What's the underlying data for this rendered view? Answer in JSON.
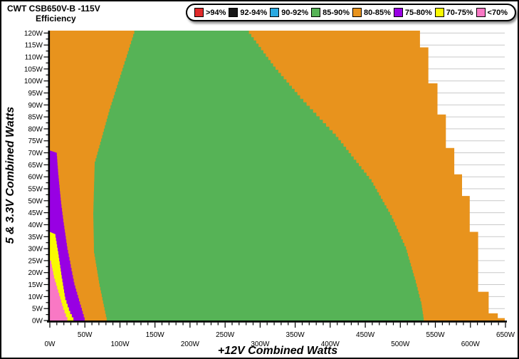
{
  "header": {
    "title": "CWT CSB650V-B -115V",
    "subtitle": "Efficiency"
  },
  "legend": {
    "position": "top",
    "items": [
      {
        "label": ">94%",
        "color": "#e02a2a"
      },
      {
        "label": "92-94%",
        "color": "#161616"
      },
      {
        "label": "90-92%",
        "color": "#29a9e1"
      },
      {
        "label": "85-90%",
        "color": "#56b356"
      },
      {
        "label": "80-85%",
        "color": "#e8931d"
      },
      {
        "label": "75-80%",
        "color": "#9800e3"
      },
      {
        "label": "70-75%",
        "color": "#fafa00"
      },
      {
        "label": "<70%",
        "color": "#f978c4"
      }
    ]
  },
  "chart_data": {
    "type": "heatmap",
    "title": "CWT CSB650V-B -115V Efficiency map",
    "xlabel": "+12V Combined Watts",
    "ylabel": "5 & 3.3V Combined Watts",
    "xlim": [
      0,
      650
    ],
    "ylim": [
      0,
      121
    ],
    "x_major_tick_step": 50,
    "x_minor_tick_step": 10,
    "y_major_tick_step": 5,
    "y_minor_tick_step": 2.5,
    "x_tick_labels": [
      "0W",
      "50W",
      "100W",
      "150W",
      "200W",
      "250W",
      "300W",
      "350W",
      "400W",
      "450W",
      "500W",
      "550W",
      "600W",
      "650W"
    ],
    "x_tick_label_rows": "staggered",
    "y_tick_labels": [
      "0W",
      "5W",
      "10W",
      "15W",
      "20W",
      "25W",
      "30W",
      "35W",
      "40W",
      "45W",
      "50W",
      "55W",
      "60W",
      "65W",
      "70W",
      "75W",
      "80W",
      "85W",
      "90W",
      "95W",
      "100W",
      "105W",
      "110W",
      "115W",
      "120W"
    ],
    "grid": {
      "horizontal_every": 5,
      "vertical": false,
      "color": "#c9c9c9"
    },
    "legend_position": "top",
    "units": "watts",
    "regions": [
      {
        "label": "80-85%",
        "color": "#e8931d",
        "polygon": [
          [
            0,
            121
          ],
          [
            528,
            121
          ],
          [
            528,
            114
          ],
          [
            540,
            114
          ],
          [
            540,
            99
          ],
          [
            553,
            99
          ],
          [
            553,
            86
          ],
          [
            565,
            86
          ],
          [
            565,
            72
          ],
          [
            577,
            72
          ],
          [
            577,
            61
          ],
          [
            588,
            61
          ],
          [
            588,
            52
          ],
          [
            599,
            52
          ],
          [
            599,
            37
          ],
          [
            611,
            37
          ],
          [
            611,
            12
          ],
          [
            626,
            12
          ],
          [
            626,
            3
          ],
          [
            639,
            3
          ],
          [
            639,
            1
          ],
          [
            649,
            1
          ],
          [
            649,
            0
          ],
          [
            0,
            0
          ]
        ]
      },
      {
        "label": "85-90%",
        "color": "#56b356",
        "polygon": [
          [
            122,
            121
          ],
          [
            284,
            121
          ],
          [
            322,
            106
          ],
          [
            357,
            94
          ],
          [
            408,
            78
          ],
          [
            459,
            59
          ],
          [
            488,
            44
          ],
          [
            508,
            31
          ],
          [
            522,
            17
          ],
          [
            530,
            8
          ],
          [
            534,
            0
          ],
          [
            81,
            0
          ],
          [
            71,
            14
          ],
          [
            63,
            28
          ],
          [
            62,
            44
          ],
          [
            64,
            65
          ],
          [
            85,
            87
          ]
        ]
      },
      {
        "label": "75-80%",
        "color": "#9800e3",
        "polygon": [
          [
            0,
            71
          ],
          [
            10,
            70
          ],
          [
            12,
            62
          ],
          [
            16,
            50
          ],
          [
            20,
            41
          ],
          [
            25,
            31
          ],
          [
            29,
            25
          ],
          [
            35,
            16
          ],
          [
            43,
            8
          ],
          [
            51,
            0
          ],
          [
            0,
            0
          ]
        ]
      },
      {
        "label": "70-75%",
        "color": "#fafa00",
        "polygon": [
          [
            0,
            37
          ],
          [
            8,
            36
          ],
          [
            12,
            29
          ],
          [
            17,
            19
          ],
          [
            22,
            10
          ],
          [
            29,
            4
          ],
          [
            36,
            0
          ],
          [
            0,
            0
          ]
        ]
      },
      {
        "label": "<70%",
        "color": "#f978c4",
        "polygon": [
          [
            0,
            25
          ],
          [
            2,
            25
          ],
          [
            6,
            19
          ],
          [
            12,
            13
          ],
          [
            19,
            6
          ],
          [
            27,
            0
          ],
          [
            0,
            0
          ]
        ]
      }
    ]
  }
}
